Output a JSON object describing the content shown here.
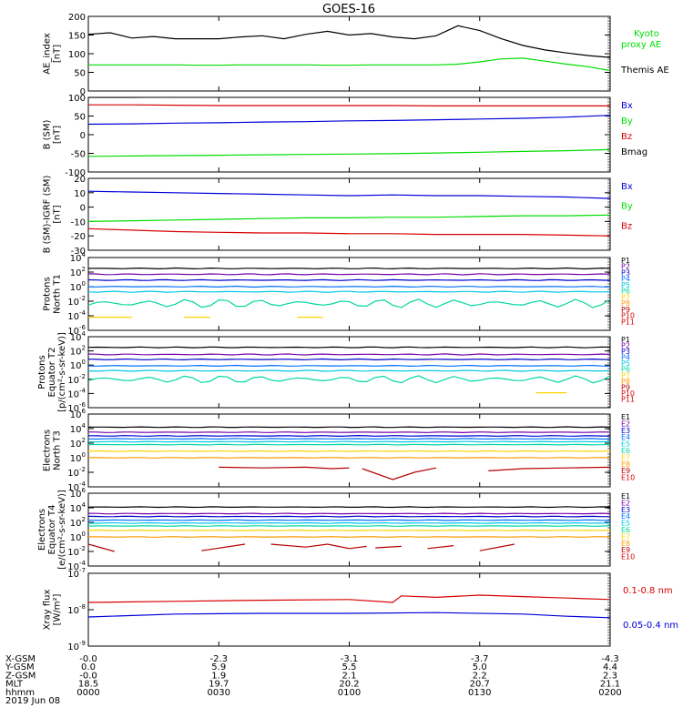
{
  "title": "GOES-16",
  "colors": {
    "black": "#000000",
    "blue": "#0000d8",
    "green": "#00dd00",
    "red": "#d80000",
    "purple": "#7800aa",
    "navy": "#0000cc",
    "azure": "#0070ff",
    "cyan": "#00c8e6",
    "teal": "#00d8a0",
    "yellow": "#ffd200",
    "orange": "#ff9a00",
    "darkred": "#b40000"
  },
  "chart_data": [
    {
      "type": "line",
      "id": "ae",
      "ylabel": "AE_index\n[nT]",
      "ylim": [
        0,
        200
      ],
      "yticks": [
        "0",
        "50",
        "100",
        "150",
        "200"
      ],
      "x": [
        0,
        5,
        10,
        15,
        20,
        25,
        30,
        35,
        40,
        45,
        50,
        55,
        60,
        65,
        70,
        75,
        80,
        85,
        90,
        95,
        100,
        105,
        110,
        115,
        120
      ],
      "series": [
        {
          "name": "Kyoto proxy AE",
          "color": "green",
          "labelled": true,
          "values": [
            70,
            70,
            70,
            70,
            70,
            69,
            69,
            70,
            70,
            70,
            70,
            69,
            69,
            70,
            70,
            70,
            70,
            72,
            78,
            86,
            88,
            80,
            72,
            65,
            55
          ]
        },
        {
          "name": "Themis AE",
          "color": "black",
          "labelled": true,
          "values": [
            152,
            156,
            142,
            146,
            140,
            140,
            140,
            145,
            148,
            140,
            152,
            160,
            150,
            154,
            145,
            140,
            148,
            175,
            162,
            140,
            122,
            110,
            102,
            95,
            90
          ]
        }
      ]
    },
    {
      "type": "line",
      "id": "bsm",
      "ylabel": "B (SM)\n[nT]",
      "ylim": [
        -100,
        100
      ],
      "yticks": [
        "-100",
        "-50",
        "0",
        "50",
        "100"
      ],
      "x": [
        0,
        10,
        20,
        30,
        40,
        50,
        60,
        70,
        80,
        90,
        100,
        110,
        120
      ],
      "series": [
        {
          "name": "Bx",
          "color": "blue",
          "values": [
            28,
            29,
            31,
            32,
            34,
            35,
            37,
            38,
            40,
            42,
            44,
            47,
            52
          ]
        },
        {
          "name": "By",
          "color": "green",
          "values": [
            -58,
            -57,
            -56,
            -55,
            -54,
            -53,
            -52,
            -51,
            -49,
            -47,
            -45,
            -43,
            -40
          ]
        },
        {
          "name": "Bz",
          "color": "red",
          "values": [
            80,
            80,
            79,
            78,
            78,
            78,
            78,
            78,
            77,
            77,
            77,
            77,
            77
          ]
        },
        {
          "name": "Bmag",
          "color": "black",
          "values": [
            100,
            100,
            101,
            101,
            101,
            101,
            101,
            101,
            101,
            101,
            102,
            102,
            102
          ]
        }
      ]
    },
    {
      "type": "line",
      "id": "bigrf",
      "ylabel": "B (SM)-IGRF (SM)\n[nT]",
      "ylim": [
        -30,
        20
      ],
      "yticks": [
        "-30",
        "-20",
        "-10",
        "0",
        "10",
        "20"
      ],
      "x": [
        0,
        10,
        20,
        30,
        40,
        50,
        60,
        70,
        80,
        90,
        100,
        110,
        120
      ],
      "series": [
        {
          "name": "Bx",
          "color": "blue",
          "values": [
            11,
            10.5,
            10,
            9.5,
            9,
            8.5,
            8,
            8.5,
            8,
            8,
            7.5,
            7,
            6
          ]
        },
        {
          "name": "By",
          "color": "green",
          "values": [
            -10,
            -9.5,
            -9,
            -8.5,
            -8,
            -7.5,
            -7.5,
            -7,
            -7,
            -6.5,
            -6,
            -6,
            -5.5
          ]
        },
        {
          "name": "Bz",
          "color": "red",
          "values": [
            -15,
            -16,
            -17,
            -17.5,
            -18,
            -18,
            -18.5,
            -18.5,
            -19,
            -19,
            -19,
            -19.5,
            -20
          ]
        }
      ]
    },
    {
      "type": "line",
      "id": "protons-t1",
      "ylabel": "Protons\nNorth T1",
      "log": true,
      "ylim": [
        -6,
        4
      ],
      "yticks": [
        "-6",
        "-4",
        "-2",
        "0",
        "2",
        "4"
      ],
      "series": [
        {
          "name": "P1",
          "color": "black",
          "level": 2.5,
          "wobble": 0.04
        },
        {
          "name": "P2",
          "color": "purple",
          "level": 1.7,
          "wobble": 0.05
        },
        {
          "name": "P3",
          "color": "navy",
          "level": 0.9,
          "wobble": 0.04
        },
        {
          "name": "P4",
          "color": "azure",
          "level": 0.0,
          "wobble": 0.04
        },
        {
          "name": "P5",
          "color": "cyan",
          "level": -0.7,
          "wobble": 0.05
        },
        {
          "name": "P6",
          "color": "teal",
          "level": -2.3,
          "wobble": 0.4
        },
        {
          "name": "P7",
          "color": "yellow",
          "level": -4.2,
          "segments": [
            [
              0,
              10
            ],
            [
              22,
              28
            ],
            [
              48,
              54
            ]
          ]
        },
        {
          "name": "P8",
          "color": "orange"
        },
        {
          "name": "P9",
          "color": "darkred"
        },
        {
          "name": "P10",
          "color": "red"
        },
        {
          "name": "P11",
          "color": "red"
        }
      ]
    },
    {
      "type": "line",
      "id": "protons-t2",
      "ylabel": "Protons\nEquator T2\n[p/(cm²-s-sr-keV)]",
      "log": true,
      "ylim": [
        -6,
        4
      ],
      "yticks": [
        "-6",
        "-4",
        "-2",
        "0",
        "2",
        "4"
      ],
      "series": [
        {
          "name": "P1",
          "color": "black",
          "level": 2.5,
          "wobble": 0.04
        },
        {
          "name": "P2",
          "color": "purple",
          "level": 1.5,
          "wobble": 0.05
        },
        {
          "name": "P3",
          "color": "navy",
          "level": 0.8,
          "wobble": 0.04
        },
        {
          "name": "P4",
          "color": "azure",
          "level": -0.1,
          "wobble": 0.04
        },
        {
          "name": "P5",
          "color": "cyan",
          "level": -0.8,
          "wobble": 0.05
        },
        {
          "name": "P6",
          "color": "teal",
          "level": -2.0,
          "wobble": 0.35
        },
        {
          "name": "P7",
          "color": "yellow",
          "level": -3.9,
          "segments": [
            [
              103,
              110
            ]
          ]
        },
        {
          "name": "P8",
          "color": "orange"
        },
        {
          "name": "P9",
          "color": "darkred"
        },
        {
          "name": "P10",
          "color": "red"
        },
        {
          "name": "P11",
          "color": "red"
        }
      ]
    },
    {
      "type": "line",
      "id": "electrons-t3",
      "ylabel": "Electrons\nNorth T3",
      "log": true,
      "ylim": [
        -4,
        6
      ],
      "yticks": [
        "-4",
        "-2",
        "0",
        "2",
        "4",
        "6"
      ],
      "series": [
        {
          "name": "E1",
          "color": "black",
          "level": 4.2,
          "wobble": 0.03
        },
        {
          "name": "E2",
          "color": "purple",
          "level": 3.5,
          "wobble": 0.03
        },
        {
          "name": "E3",
          "color": "navy",
          "level": 3.0,
          "wobble": 0.03
        },
        {
          "name": "E4",
          "color": "azure",
          "level": 2.6,
          "wobble": 0.03
        },
        {
          "name": "E5",
          "color": "cyan",
          "level": 2.2,
          "wobble": 0.03
        },
        {
          "name": "E6",
          "color": "teal",
          "level": 1.8,
          "wobble": 0.03
        },
        {
          "name": "E7",
          "color": "yellow",
          "level": 0.9,
          "wobble": 0.03
        },
        {
          "name": "E8",
          "color": "orange",
          "level": 0.0,
          "wobble": 0.03
        },
        {
          "name": "E9",
          "color": "darkred",
          "level": -1.4,
          "segments": [
            [
              30,
              60
            ],
            [
              63,
              80
            ],
            [
              92,
              120
            ]
          ],
          "points": [
            [
              30,
              -1.3
            ],
            [
              40,
              -1.4
            ],
            [
              50,
              -1.3
            ],
            [
              56,
              -1.5
            ],
            [
              60,
              -1.4
            ],
            [
              63,
              -1.5
            ],
            [
              70,
              -3.0
            ],
            [
              75,
              -2.0
            ],
            [
              80,
              -1.4
            ],
            [
              92,
              -1.8
            ],
            [
              100,
              -1.5
            ],
            [
              110,
              -1.4
            ],
            [
              120,
              -1.3
            ]
          ]
        },
        {
          "name": "E10",
          "color": "red"
        }
      ]
    },
    {
      "type": "line",
      "id": "electrons-t4",
      "ylabel": "Electrons\nEquator T4\n[e/(cm²-s-sr-keV)]",
      "log": true,
      "ylim": [
        -4,
        6
      ],
      "yticks": [
        "-4",
        "-2",
        "0",
        "2",
        "4",
        "6"
      ],
      "series": [
        {
          "name": "E1",
          "color": "black",
          "level": 4.1,
          "wobble": 0.03
        },
        {
          "name": "E2",
          "color": "purple",
          "level": 3.2,
          "wobble": 0.03
        },
        {
          "name": "E3",
          "color": "navy",
          "level": 2.8,
          "wobble": 0.03
        },
        {
          "name": "E4",
          "color": "azure",
          "level": 2.3,
          "wobble": 0.03
        },
        {
          "name": "E5",
          "color": "cyan",
          "level": 1.9,
          "wobble": 0.03
        },
        {
          "name": "E6",
          "color": "teal",
          "level": 1.5,
          "wobble": 0.03
        },
        {
          "name": "E7",
          "color": "yellow",
          "level": 0.9,
          "wobble": 0.03
        },
        {
          "name": "E8",
          "color": "orange",
          "level": 0.0,
          "wobble": 0.03
        },
        {
          "name": "E9",
          "color": "darkred",
          "level": -1.6,
          "segments": [
            [
              0,
              6
            ],
            [
              26,
              36
            ],
            [
              42,
              64
            ],
            [
              66,
              72
            ],
            [
              78,
              84
            ],
            [
              90,
              98
            ]
          ],
          "points": [
            [
              0,
              -1.0
            ],
            [
              6,
              -2.0
            ],
            [
              26,
              -1.9
            ],
            [
              36,
              -1.0
            ],
            [
              42,
              -1.0
            ],
            [
              50,
              -1.4
            ],
            [
              55,
              -1.0
            ],
            [
              60,
              -1.6
            ],
            [
              64,
              -1.3
            ],
            [
              66,
              -1.5
            ],
            [
              72,
              -1.3
            ],
            [
              78,
              -1.6
            ],
            [
              84,
              -1.2
            ],
            [
              90,
              -1.9
            ],
            [
              98,
              -1.0
            ]
          ]
        },
        {
          "name": "E10",
          "color": "red"
        }
      ]
    },
    {
      "type": "line",
      "id": "xray",
      "ylabel": "Xray flux\n[W/m²]",
      "log": true,
      "ylim": [
        -9,
        -7
      ],
      "yticks": [
        "-9",
        "-8",
        "-7"
      ],
      "series": [
        {
          "name": "0.1-0.8 nm",
          "color": "red",
          "labelled": true,
          "level": -7.75,
          "wobble": 0.05,
          "points": [
            [
              0,
              -7.8
            ],
            [
              20,
              -7.77
            ],
            [
              40,
              -7.74
            ],
            [
              60,
              -7.72
            ],
            [
              70,
              -7.8
            ],
            [
              72,
              -7.62
            ],
            [
              80,
              -7.66
            ],
            [
              90,
              -7.6
            ],
            [
              100,
              -7.64
            ],
            [
              110,
              -7.68
            ],
            [
              120,
              -7.72
            ]
          ]
        },
        {
          "name": "0.05-0.4 nm",
          "color": "blue",
          "labelled": true,
          "level": -8.15,
          "wobble": 0.05,
          "points": [
            [
              0,
              -8.2
            ],
            [
              20,
              -8.12
            ],
            [
              40,
              -8.1
            ],
            [
              60,
              -8.1
            ],
            [
              80,
              -8.08
            ],
            [
              100,
              -8.12
            ],
            [
              110,
              -8.18
            ],
            [
              120,
              -8.22
            ]
          ]
        }
      ]
    }
  ],
  "xaxis": {
    "rows": [
      {
        "label": "X-GSM",
        "values": [
          "-0.0",
          "-2.3",
          "-3.1",
          "-3.7",
          "-4.3"
        ]
      },
      {
        "label": "Y-GSM",
        "values": [
          "0.0",
          "5.9",
          "5.5",
          "5.0",
          "4.4"
        ]
      },
      {
        "label": "Z-GSM",
        "values": [
          "-0.0",
          "1.9",
          "2.1",
          "2.2",
          "2.3"
        ]
      },
      {
        "label": "MLT",
        "values": [
          "18.5",
          "19.7",
          "20.2",
          "20.7",
          "21.1"
        ]
      },
      {
        "label": "hhmm",
        "values": [
          "0000",
          "0030",
          "0100",
          "0130",
          "0200"
        ]
      }
    ],
    "date": "2019 Jun 08"
  }
}
